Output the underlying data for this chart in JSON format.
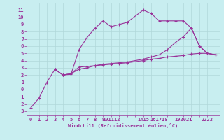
{
  "xlabel": "Windchill (Refroidissement éolien,°C)",
  "bg_color": "#c8eef0",
  "grid_color": "#b0d8da",
  "line_color": "#993399",
  "xlim": [
    -0.5,
    23.5
  ],
  "ylim": [
    -3.5,
    12.0
  ],
  "xticks": [
    0,
    1,
    2,
    3,
    4,
    5,
    6,
    7,
    8,
    9,
    10,
    11,
    12,
    14,
    15,
    16,
    17,
    18,
    19,
    20,
    21,
    22,
    23
  ],
  "xtick_labels": [
    "0",
    "1",
    "2",
    "3",
    "4",
    "5",
    "6",
    "7",
    "8",
    "9",
    "101112",
    "",
    "",
    "1415",
    "",
    "161718",
    "",
    "",
    "192021",
    "",
    "",
    "2223",
    ""
  ],
  "yticks": [
    -3,
    -2,
    -1,
    0,
    1,
    2,
    3,
    4,
    5,
    6,
    7,
    8,
    9,
    10,
    11
  ],
  "series1_x": [
    0,
    1,
    2,
    3,
    4,
    5,
    6,
    7,
    8,
    9,
    10,
    11,
    12,
    14,
    15,
    16,
    17,
    18,
    19,
    20,
    21,
    22,
    23
  ],
  "series1_y": [
    -2.5,
    -1.2,
    1.0,
    2.8,
    2.0,
    2.1,
    5.5,
    7.2,
    8.5,
    9.5,
    8.7,
    9.0,
    9.3,
    11.0,
    10.5,
    9.5,
    9.5,
    9.5,
    9.5,
    8.5,
    6.0,
    5.0,
    4.8
  ],
  "series2_x": [
    3,
    4,
    5,
    6,
    7,
    8,
    9,
    10,
    11,
    12,
    14,
    15,
    16,
    17,
    18,
    19,
    20,
    21,
    22,
    23
  ],
  "series2_y": [
    2.8,
    2.0,
    2.2,
    3.1,
    3.2,
    3.3,
    3.4,
    3.5,
    3.6,
    3.7,
    4.0,
    4.2,
    4.3,
    4.5,
    4.6,
    4.7,
    4.9,
    5.0,
    5.0,
    4.8
  ],
  "series3_x": [
    3,
    4,
    5,
    6,
    7,
    8,
    9,
    10,
    11,
    12,
    14,
    15,
    16,
    17,
    18,
    19,
    20,
    21,
    22,
    23
  ],
  "series3_y": [
    2.8,
    2.0,
    2.2,
    2.8,
    3.0,
    3.3,
    3.5,
    3.6,
    3.7,
    3.8,
    4.2,
    4.5,
    4.8,
    5.5,
    6.5,
    7.3,
    8.5,
    6.0,
    5.0,
    4.8
  ],
  "tick_fontsize": 5,
  "xlabel_fontsize": 5,
  "marker_size": 3,
  "line_width": 0.8
}
